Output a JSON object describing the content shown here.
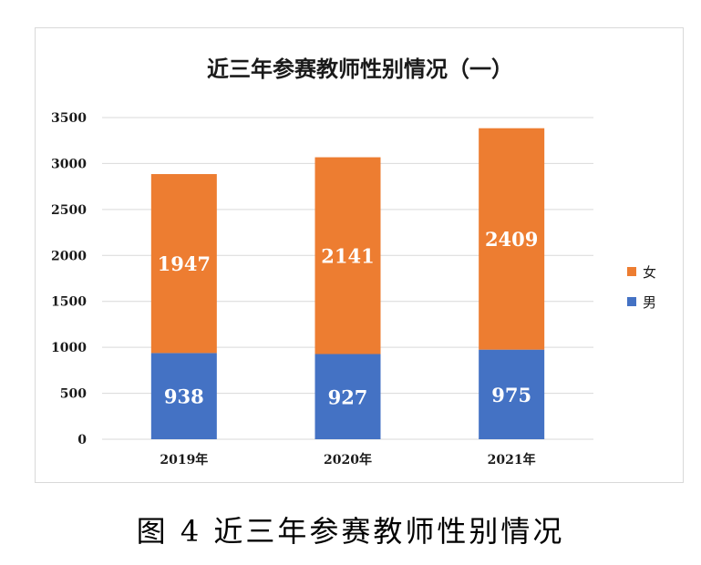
{
  "chart_data": {
    "type": "bar",
    "stacked": true,
    "title": "近三年参赛教师性别情况（一）",
    "categories": [
      "2019年",
      "2020年",
      "2021年"
    ],
    "series": [
      {
        "name": "男",
        "values": [
          938,
          927,
          975
        ],
        "color": "#4472c4"
      },
      {
        "name": "女",
        "values": [
          1947,
          2141,
          2409
        ],
        "color": "#ed7d31"
      }
    ],
    "ylim": [
      0,
      3500
    ],
    "yticks": [
      0,
      500,
      1000,
      1500,
      2000,
      2500,
      3000,
      3500
    ],
    "grid": true,
    "legend_position": "right",
    "legend_order": [
      "女",
      "男"
    ]
  },
  "caption": "图 4 近三年参赛教师性别情况"
}
